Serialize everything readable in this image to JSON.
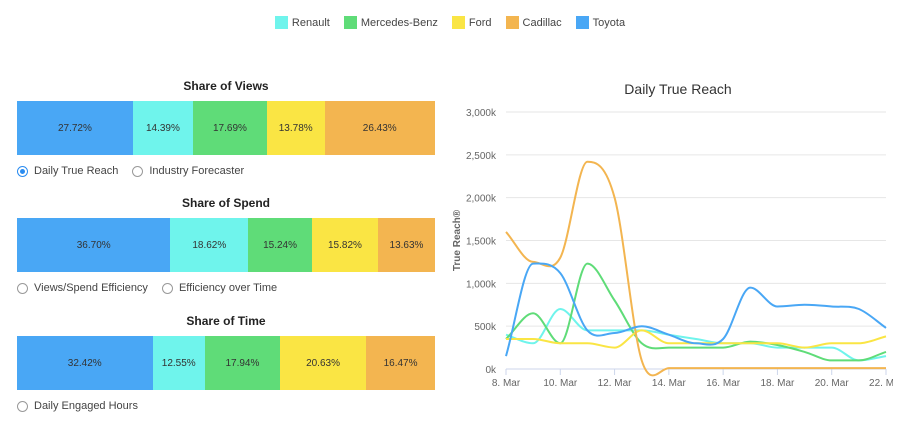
{
  "colors": {
    "Renault": "#6ff4ec",
    "Mercedes-Benz": "#5fdc78",
    "Ford": "#fae544",
    "Cadillac": "#f3b550",
    "Toyota": "#49a7f5"
  },
  "legend": [
    {
      "label": "Renault",
      "icon": "square-swatch"
    },
    {
      "label": "Mercedes-Benz",
      "icon": "square-swatch"
    },
    {
      "label": "Ford",
      "icon": "square-swatch"
    },
    {
      "label": "Cadillac",
      "icon": "square-swatch"
    },
    {
      "label": "Toyota",
      "icon": "square-swatch"
    }
  ],
  "panels": [
    {
      "title": "Share of Views",
      "options": [
        {
          "label": "Daily True Reach",
          "checked": true
        },
        {
          "label": "Industry Forecaster",
          "checked": false
        }
      ]
    },
    {
      "title": "Share of Spend",
      "options": [
        {
          "label": "Views/Spend Efficiency",
          "checked": false
        },
        {
          "label": "Efficiency over Time",
          "checked": false
        }
      ]
    },
    {
      "title": "Share of Time",
      "options": [
        {
          "label": "Daily Engaged Hours",
          "checked": false
        }
      ]
    }
  ],
  "chart_data": [
    {
      "type": "bar",
      "orientation": "horizontal-stacked-100",
      "title": "Share of Views",
      "series": [
        {
          "name": "Toyota",
          "value": 27.72,
          "label": "27.72%"
        },
        {
          "name": "Renault",
          "value": 14.39,
          "label": "14.39%"
        },
        {
          "name": "Mercedes-Benz",
          "value": 17.69,
          "label": "17.69%"
        },
        {
          "name": "Ford",
          "value": 13.78,
          "label": "13.78%"
        },
        {
          "name": "Cadillac",
          "value": 26.43,
          "label": "26.43%"
        }
      ]
    },
    {
      "type": "bar",
      "orientation": "horizontal-stacked-100",
      "title": "Share of Spend",
      "series": [
        {
          "name": "Toyota",
          "value": 36.7,
          "label": "36.70%"
        },
        {
          "name": "Renault",
          "value": 18.62,
          "label": "18.62%"
        },
        {
          "name": "Mercedes-Benz",
          "value": 15.24,
          "label": "15.24%"
        },
        {
          "name": "Ford",
          "value": 15.82,
          "label": "15.82%"
        },
        {
          "name": "Cadillac",
          "value": 13.63,
          "label": "13.63%"
        }
      ]
    },
    {
      "type": "bar",
      "orientation": "horizontal-stacked-100",
      "title": "Share of Time",
      "series": [
        {
          "name": "Toyota",
          "value": 32.42,
          "label": "32.42%"
        },
        {
          "name": "Renault",
          "value": 12.55,
          "label": "12.55%"
        },
        {
          "name": "Mercedes-Benz",
          "value": 17.94,
          "label": "17.94%"
        },
        {
          "name": "Ford",
          "value": 20.63,
          "label": "20.63%"
        },
        {
          "name": "Cadillac",
          "value": 16.47,
          "label": "16.47%"
        }
      ]
    },
    {
      "type": "line",
      "title": "Daily True Reach",
      "xlabel": "",
      "ylabel": "True Reach®",
      "ylim": [
        0,
        3000000
      ],
      "xlim": [
        "8. Mar",
        "22. Mar"
      ],
      "x_ticks": [
        "8. Mar",
        "10. Mar",
        "12. Mar",
        "14. Mar",
        "16. Mar",
        "18. Mar",
        "20. Mar",
        "22. Mar"
      ],
      "y_ticks": [
        {
          "value": 0,
          "label": "0k"
        },
        {
          "value": 500000,
          "label": "500k"
        },
        {
          "value": 1000000,
          "label": "1,000k"
        },
        {
          "value": 1500000,
          "label": "1,500k"
        },
        {
          "value": 2000000,
          "label": "2,000k"
        },
        {
          "value": 2500000,
          "label": "2,500k"
        },
        {
          "value": 3000000,
          "label": "3,000k"
        }
      ],
      "grid": true,
      "x": [
        "8. Mar",
        "9. Mar",
        "10. Mar",
        "11. Mar",
        "12. Mar",
        "13. Mar",
        "14. Mar",
        "15. Mar",
        "16. Mar",
        "17. Mar",
        "18. Mar",
        "19. Mar",
        "20. Mar",
        "21. Mar",
        "22. Mar"
      ],
      "series": [
        {
          "name": "Renault",
          "values": [
            400000,
            300000,
            700000,
            450000,
            450000,
            450000,
            400000,
            350000,
            300000,
            300000,
            250000,
            250000,
            250000,
            100000,
            150000
          ]
        },
        {
          "name": "Mercedes-Benz",
          "values": [
            350000,
            650000,
            300000,
            1230000,
            800000,
            300000,
            250000,
            250000,
            250000,
            320000,
            280000,
            200000,
            100000,
            100000,
            200000
          ]
        },
        {
          "name": "Ford",
          "values": [
            350000,
            350000,
            300000,
            300000,
            250000,
            450000,
            300000,
            300000,
            300000,
            300000,
            300000,
            250000,
            300000,
            300000,
            380000
          ]
        },
        {
          "name": "Cadillac",
          "values": [
            1600000,
            1250000,
            1300000,
            2420000,
            2000000,
            100000,
            10000,
            10000,
            10000,
            10000,
            10000,
            10000,
            10000,
            10000,
            10000
          ]
        },
        {
          "name": "Toyota",
          "values": [
            150000,
            1230000,
            1120000,
            450000,
            420000,
            500000,
            400000,
            300000,
            350000,
            950000,
            730000,
            750000,
            730000,
            700000,
            480000
          ]
        }
      ]
    }
  ]
}
